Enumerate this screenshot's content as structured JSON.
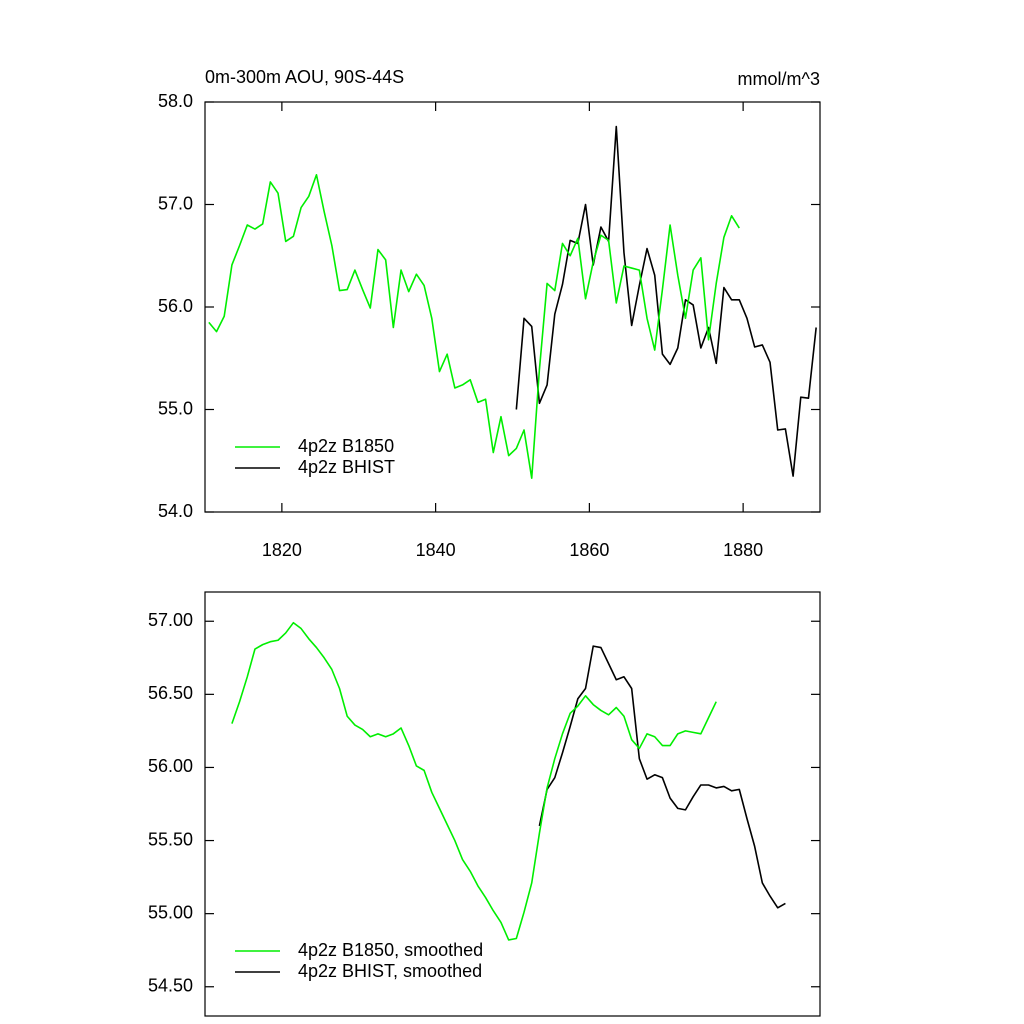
{
  "chart_data": [
    {
      "type": "line",
      "title": "0m-300m AOU, 90S-44S",
      "units": "mmol/m^3",
      "x": [
        1810.5,
        1811.5,
        1812.5,
        1813.5,
        1814.5,
        1815.5,
        1816.5,
        1817.5,
        1818.5,
        1819.5,
        1820.5,
        1821.5,
        1822.5,
        1823.5,
        1824.5,
        1825.5,
        1826.5,
        1827.5,
        1828.5,
        1829.5,
        1830.5,
        1831.5,
        1832.5,
        1833.5,
        1834.5,
        1835.5,
        1836.5,
        1837.5,
        1838.5,
        1839.5,
        1840.5,
        1841.5,
        1842.5,
        1843.5,
        1844.5,
        1845.5,
        1846.5,
        1847.5,
        1848.5,
        1849.5,
        1850.5,
        1851.5,
        1852.5,
        1853.5,
        1854.5,
        1855.5,
        1856.5,
        1857.5,
        1858.5,
        1859.5,
        1860.5,
        1861.5,
        1862.5,
        1863.5,
        1864.5,
        1865.5,
        1866.5,
        1867.5,
        1868.5,
        1869.5,
        1870.5,
        1871.5,
        1872.5,
        1873.5,
        1874.5,
        1875.5,
        1876.5,
        1877.5,
        1878.5,
        1879.5,
        1880.5,
        1881.5,
        1882.5,
        1883.5,
        1884.5,
        1885.5,
        1886.5,
        1887.5,
        1888.5,
        1889.5
      ],
      "series": [
        {
          "name": "4p2z BHIST",
          "color": "#000000",
          "values": [
            null,
            null,
            null,
            null,
            null,
            null,
            null,
            null,
            null,
            null,
            null,
            null,
            null,
            null,
            null,
            null,
            null,
            null,
            null,
            null,
            null,
            null,
            null,
            null,
            null,
            null,
            null,
            null,
            null,
            null,
            null,
            null,
            null,
            null,
            null,
            null,
            null,
            null,
            null,
            null,
            55.0,
            55.89,
            55.81,
            55.06,
            55.24,
            55.93,
            56.22,
            56.65,
            56.62,
            57.0,
            56.41,
            56.78,
            56.64,
            57.76,
            56.53,
            55.82,
            56.21,
            56.57,
            56.31,
            55.54,
            55.44,
            55.6,
            56.07,
            56.02,
            55.6,
            55.8,
            55.45,
            56.19,
            56.07,
            56.07,
            55.89,
            55.61,
            55.63,
            55.46,
            54.8,
            54.81,
            54.35,
            55.12,
            55.11,
            55.8
          ]
        },
        {
          "name": "4p2z B1850",
          "color": "#00ee00",
          "values": [
            55.85,
            55.76,
            55.91,
            56.41,
            56.6,
            56.8,
            56.76,
            56.81,
            57.22,
            57.11,
            56.64,
            56.69,
            56.97,
            57.08,
            57.29,
            56.93,
            56.6,
            56.16,
            56.17,
            56.36,
            56.17,
            55.99,
            56.56,
            56.46,
            55.8,
            56.36,
            56.15,
            56.32,
            56.21,
            55.89,
            55.37,
            55.54,
            55.21,
            55.24,
            55.29,
            55.07,
            55.1,
            54.58,
            54.93,
            54.55,
            54.62,
            54.8,
            54.33,
            55.39,
            56.23,
            56.16,
            56.62,
            56.5,
            56.67,
            56.08,
            56.44,
            56.7,
            56.65,
            56.04,
            56.4,
            56.38,
            56.36,
            55.89,
            55.58,
            56.17,
            56.8,
            56.31,
            55.89,
            56.36,
            56.48,
            55.68,
            56.23,
            56.68,
            56.89,
            56.77,
            null,
            null,
            null,
            null,
            null,
            null,
            null,
            null,
            null,
            null
          ]
        }
      ],
      "xlim": [
        1810,
        1890
      ],
      "xticks": [
        1820,
        1840,
        1860,
        1880
      ],
      "ylim": [
        54,
        58
      ],
      "yticks": [
        {
          "value": 54,
          "label": "54.0"
        },
        {
          "value": 55,
          "label": "55.0"
        },
        {
          "value": 56,
          "label": "56.0"
        },
        {
          "value": 57,
          "label": "57.0"
        },
        {
          "value": 58,
          "label": "58.0"
        }
      ],
      "legend": "lower left"
    },
    {
      "type": "line",
      "x": [
        1810.5,
        1811.5,
        1812.5,
        1813.5,
        1814.5,
        1815.5,
        1816.5,
        1817.5,
        1818.5,
        1819.5,
        1820.5,
        1821.5,
        1822.5,
        1823.5,
        1824.5,
        1825.5,
        1826.5,
        1827.5,
        1828.5,
        1829.5,
        1830.5,
        1831.5,
        1832.5,
        1833.5,
        1834.5,
        1835.5,
        1836.5,
        1837.5,
        1838.5,
        1839.5,
        1840.5,
        1841.5,
        1842.5,
        1843.5,
        1844.5,
        1845.5,
        1846.5,
        1847.5,
        1848.5,
        1849.5,
        1850.5,
        1851.5,
        1852.5,
        1853.5,
        1854.5,
        1855.5,
        1856.5,
        1857.5,
        1858.5,
        1859.5,
        1860.5,
        1861.5,
        1862.5,
        1863.5,
        1864.5,
        1865.5,
        1866.5,
        1867.5,
        1868.5,
        1869.5,
        1870.5,
        1871.5,
        1872.5,
        1873.5,
        1874.5,
        1875.5,
        1876.5,
        1877.5,
        1878.5,
        1879.5,
        1880.5,
        1881.5,
        1882.5,
        1883.5,
        1884.5,
        1885.5,
        1886.5,
        1887.5,
        1888.5,
        1889.5
      ],
      "series": [
        {
          "name": "4p2z BHIST, smoothed",
          "color": "#000000",
          "values": [
            null,
            null,
            null,
            null,
            null,
            null,
            null,
            null,
            null,
            null,
            null,
            null,
            null,
            null,
            null,
            null,
            null,
            null,
            null,
            null,
            null,
            null,
            null,
            null,
            null,
            null,
            null,
            null,
            null,
            null,
            null,
            null,
            null,
            null,
            null,
            null,
            null,
            null,
            null,
            null,
            null,
            null,
            null,
            55.6,
            55.85,
            55.93,
            56.1,
            56.28,
            56.47,
            56.54,
            56.83,
            56.82,
            56.71,
            56.6,
            56.62,
            56.54,
            56.06,
            55.92,
            55.95,
            55.93,
            55.79,
            55.72,
            55.71,
            55.8,
            55.88,
            55.88,
            55.86,
            55.87,
            55.84,
            55.85,
            55.65,
            55.46,
            55.21,
            55.12,
            55.04,
            55.07,
            null,
            null,
            null,
            null
          ]
        },
        {
          "name": "4p2z B1850, smoothed",
          "color": "#00ee00",
          "values": [
            null,
            null,
            null,
            56.3,
            56.45,
            56.62,
            56.81,
            56.84,
            56.86,
            56.87,
            56.92,
            56.99,
            56.95,
            56.88,
            56.82,
            56.75,
            56.67,
            56.54,
            56.35,
            56.29,
            56.26,
            56.21,
            56.23,
            56.21,
            56.23,
            56.27,
            56.15,
            56.01,
            55.98,
            55.83,
            55.72,
            55.61,
            55.5,
            55.37,
            55.29,
            55.19,
            55.11,
            55.02,
            54.94,
            54.82,
            54.83,
            55.01,
            55.21,
            55.55,
            55.86,
            56.06,
            56.23,
            56.37,
            56.42,
            56.49,
            56.43,
            56.39,
            56.36,
            56.41,
            56.35,
            56.19,
            56.13,
            56.23,
            56.21,
            56.15,
            56.15,
            56.23,
            56.25,
            56.24,
            56.23,
            56.34,
            56.45,
            null,
            null,
            null,
            null,
            null,
            null,
            null,
            null,
            null,
            null,
            null,
            null,
            null
          ]
        }
      ],
      "xlim": [
        1810,
        1890
      ],
      "ylim": [
        54.3,
        57.2
      ],
      "yticks": [
        {
          "value": 54.5,
          "label": "54.50"
        },
        {
          "value": 55,
          "label": "55.00"
        },
        {
          "value": 55.5,
          "label": "55.50"
        },
        {
          "value": 56,
          "label": "56.00"
        },
        {
          "value": 56.5,
          "label": "56.50"
        },
        {
          "value": 57,
          "label": "57.00"
        }
      ],
      "legend": "lower left"
    }
  ]
}
